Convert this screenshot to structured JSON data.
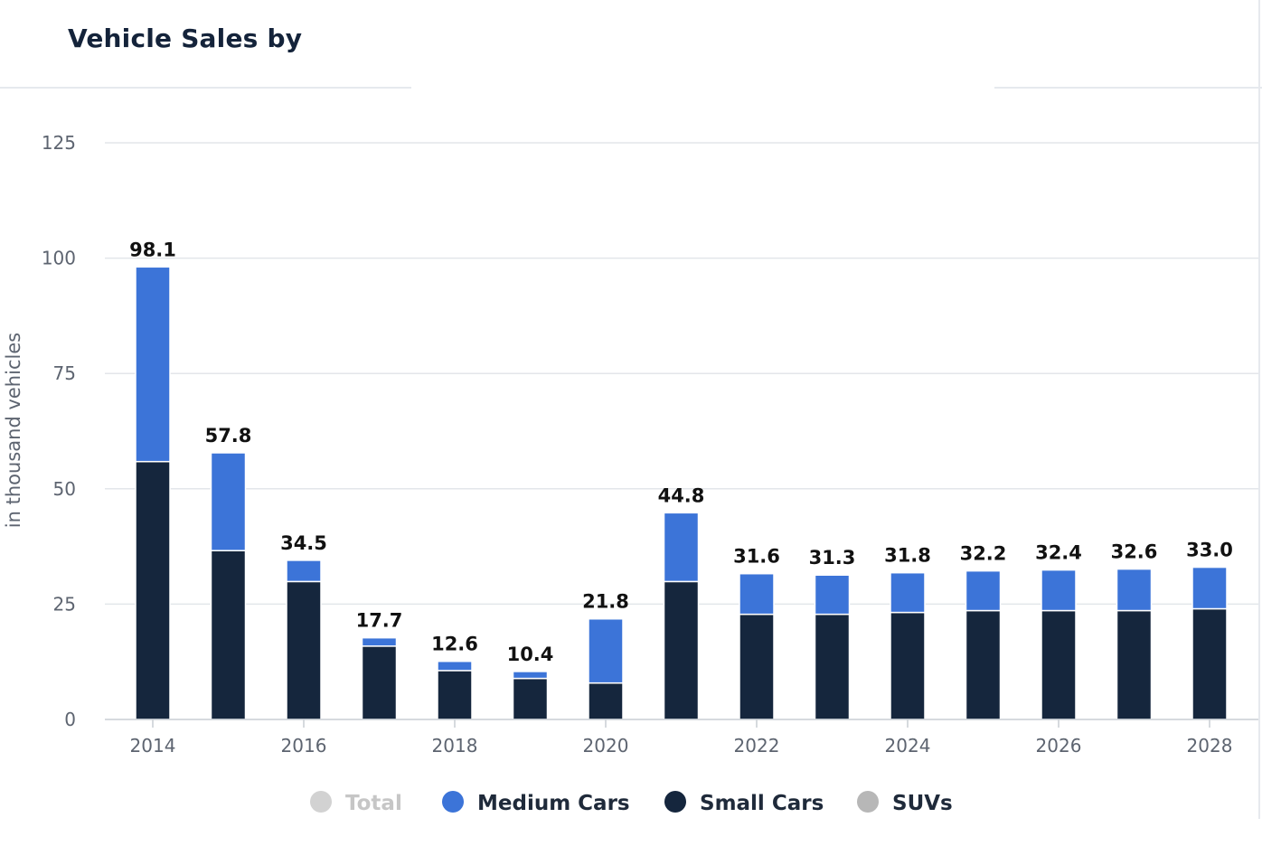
{
  "header": {
    "title": "Vehicle Sales by"
  },
  "chart_data": {
    "type": "bar",
    "stacked": true,
    "x": [
      2014,
      2015,
      2016,
      2017,
      2018,
      2019,
      2020,
      2021,
      2022,
      2023,
      2024,
      2025,
      2026,
      2027,
      2028
    ],
    "x_tick_labels": [
      "2014",
      "2016",
      "2018",
      "2020",
      "2022",
      "2024",
      "2026",
      "2028"
    ],
    "y_ticks": [
      "0",
      "25",
      "50",
      "75",
      "100",
      "125"
    ],
    "ylim": [
      0,
      125
    ],
    "ylabel": "in thousand vehicles",
    "grid": true,
    "series": [
      {
        "name": "Small Cars",
        "color": "#15263d",
        "values": [
          55.9,
          36.6,
          29.9,
          15.9,
          10.6,
          8.9,
          7.9,
          29.9,
          22.8,
          22.8,
          23.2,
          23.6,
          23.6,
          23.6,
          24.0
        ]
      },
      {
        "name": "Medium Cars",
        "color": "#3c74d8",
        "values": [
          42.2,
          21.2,
          4.6,
          1.8,
          2.0,
          1.5,
          13.9,
          14.9,
          8.8,
          8.5,
          8.6,
          8.6,
          8.8,
          9.0,
          9.0
        ]
      }
    ],
    "totals": [
      "98.1",
      "57.8",
      "34.5",
      "17.7",
      "12.6",
      "10.4",
      "21.8",
      "44.8",
      "31.6",
      "31.3",
      "31.8",
      "32.2",
      "32.4",
      "32.6",
      "33.0"
    ],
    "legend": {
      "placement": "bottom-center",
      "items": [
        {
          "label": "Total",
          "color": "#d2d2d2",
          "text_color": "#c6c6c6"
        },
        {
          "label": "Medium Cars",
          "color": "#3c74d8",
          "text_color": "#1f2a3a"
        },
        {
          "label": "Small Cars",
          "color": "#15263d",
          "text_color": "#1f2a3a"
        },
        {
          "label": "SUVs",
          "color": "#b7b7b7",
          "text_color": "#1f2a3a"
        }
      ]
    }
  }
}
